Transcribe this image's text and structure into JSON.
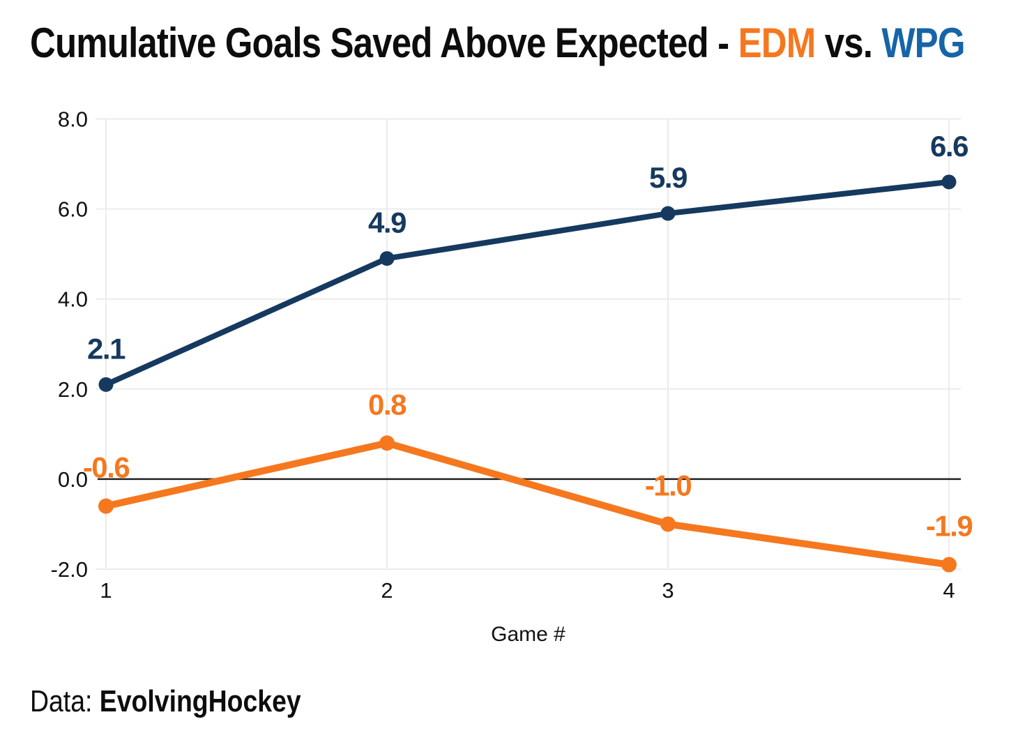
{
  "title": {
    "prefix": "Cumulative Goals Saved Above Expected - ",
    "team1": "EDM",
    "separator": " vs. ",
    "team2": "WPG"
  },
  "footer": {
    "label": "Data: ",
    "source": "EvolvingHockey"
  },
  "colors": {
    "edm": "#F5781F",
    "wpg": "#16395F",
    "edm_title": "#F5781F",
    "wpg_title": "#1565A8",
    "grid": "#ECECEC",
    "zero_line": "#222222",
    "text": "#111111"
  },
  "chart_data": {
    "type": "line",
    "title": "Cumulative Goals Saved Above Expected - EDM vs. WPG",
    "xlabel": "Game #",
    "ylabel": "",
    "x": [
      1,
      2,
      3,
      4
    ],
    "x_tick_labels": [
      "1",
      "2",
      "3",
      "4"
    ],
    "xlim": [
      1,
      4
    ],
    "y_ticks": [
      8,
      6,
      4,
      2,
      0,
      -2
    ],
    "y_tick_labels": [
      "8.0",
      "6.0",
      "4.0",
      "2.0",
      "0.0",
      "-2.0"
    ],
    "ylim": [
      -2,
      8
    ],
    "grid": true,
    "zero_line_at": 0,
    "legend_position": "none",
    "series": [
      {
        "name": "WPG",
        "color": "#16395F",
        "values": [
          2.1,
          4.9,
          5.9,
          6.6
        ],
        "point_labels": [
          "2.1",
          "4.9",
          "5.9",
          "6.6"
        ]
      },
      {
        "name": "EDM",
        "color": "#F5781F",
        "values": [
          -0.6,
          0.8,
          -1.0,
          -1.9
        ],
        "point_labels": [
          "-0.6",
          "0.8",
          "-1.0",
          "-1.9"
        ]
      }
    ],
    "source_note": "Data: EvolvingHockey"
  }
}
